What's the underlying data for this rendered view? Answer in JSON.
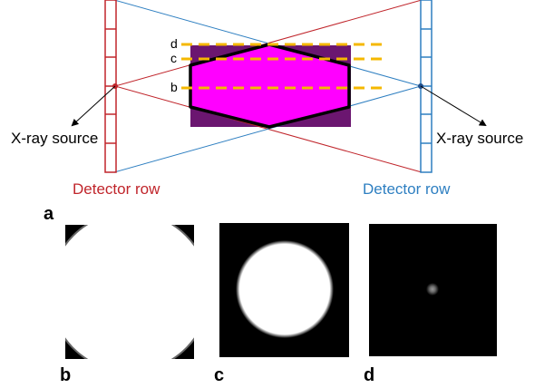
{
  "labels": {
    "source_left": "X-ray source",
    "source_right": "X-ray source",
    "detector_left": "Detector row",
    "detector_right": "Detector row"
  },
  "slice_letters": [
    "d",
    "c",
    "b"
  ],
  "panel_letters": [
    "a",
    "b",
    "c",
    "d"
  ],
  "colors": {
    "left_detector": "#c0252b",
    "right_detector": "#2e7fc1",
    "hex_fill": "#ff00ff",
    "rect_fill": "#6b1670",
    "slice_line": "#f5b800",
    "hex_outline": "#000000"
  }
}
